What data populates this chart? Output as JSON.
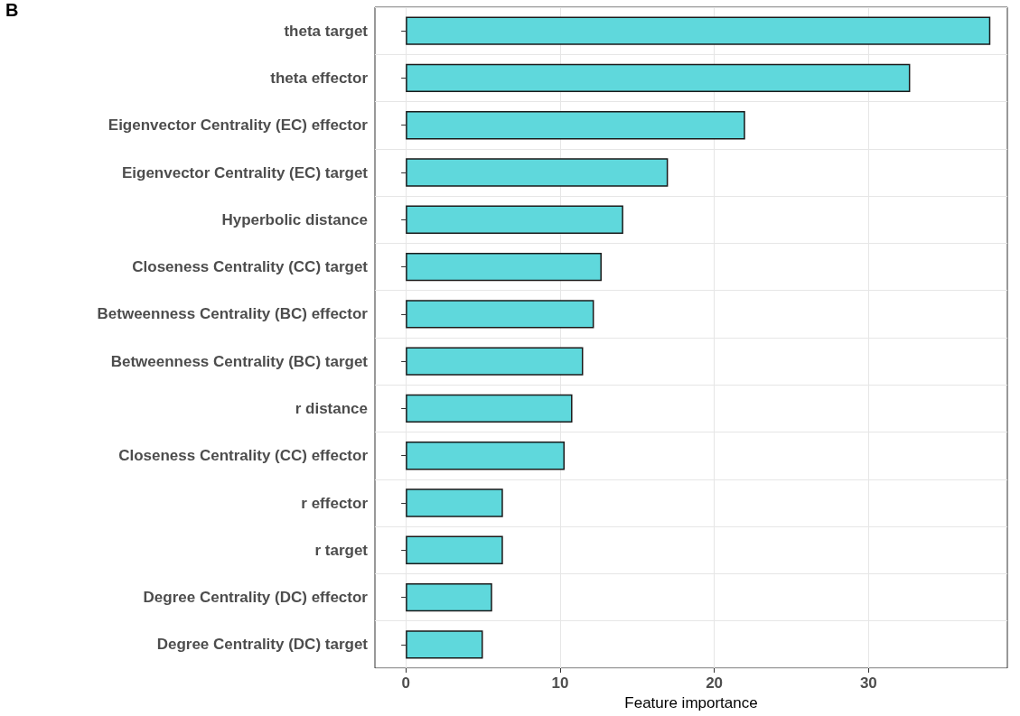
{
  "chart_data": {
    "type": "bar",
    "orientation": "horizontal",
    "xlabel": "Feature importance",
    "annotations": [
      "B"
    ],
    "categories": [
      "theta target",
      "theta effector",
      "Eigenvector Centrality (EC) effector",
      "Eigenvector Centrality (EC) target",
      "Hyperbolic distance",
      "Closeness Centrality (CC) target",
      "Betweenness Centrality (BC) effector",
      "Betweenness Centrality (BC) target",
      "r distance",
      "Closeness Centrality (CC) effector",
      "r effector",
      "r target",
      "Degree Centrality (DC) effector",
      "Degree Centrality (DC) target"
    ],
    "values": [
      37.9,
      32.7,
      22.0,
      17.0,
      14.1,
      12.7,
      12.2,
      11.5,
      10.8,
      10.3,
      6.3,
      6.3,
      5.6,
      5.0
    ],
    "color": "#5fd8dc",
    "xlim": [
      -2,
      39
    ],
    "xticks": [
      0,
      10,
      20,
      30
    ],
    "grid": true
  }
}
